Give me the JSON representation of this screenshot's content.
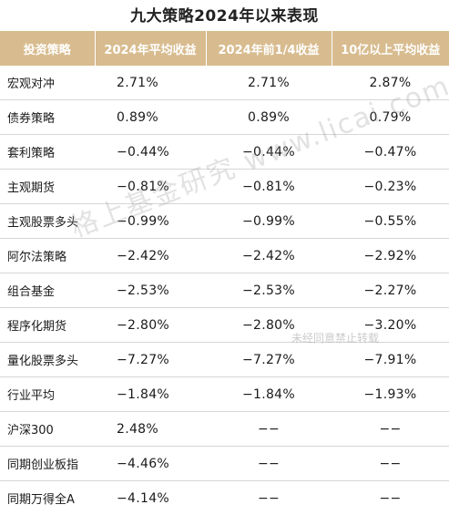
{
  "title": "九大策略2024年以来表现",
  "table": {
    "headers": [
      "投资策略",
      "2024年平均收益",
      "2024年前1/4收益",
      "10亿以上平均收益"
    ],
    "rows": [
      {
        "name": "宏观对冲",
        "avg": "2.71%",
        "q1": "2.71%",
        "big": "2.87%"
      },
      {
        "name": "债券策略",
        "avg": "0.89%",
        "q1": "0.89%",
        "big": "0.79%"
      },
      {
        "name": "套利策略",
        "avg": "−0.44%",
        "q1": "−0.44%",
        "big": "−0.47%"
      },
      {
        "name": "主观期货",
        "avg": "−0.81%",
        "q1": "−0.81%",
        "big": "−0.23%"
      },
      {
        "name": "主观股票多头",
        "avg": "−0.99%",
        "q1": "−0.99%",
        "big": "−0.55%"
      },
      {
        "name": "阿尔法策略",
        "avg": "−2.42%",
        "q1": "−2.42%",
        "big": "−2.92%"
      },
      {
        "name": "组合基金",
        "avg": "−2.53%",
        "q1": "−2.53%",
        "big": "−2.27%"
      },
      {
        "name": "程序化期货",
        "avg": "−2.80%",
        "q1": "−2.80%",
        "big": "−3.20%"
      },
      {
        "name": "量化股票多头",
        "avg": "−7.27%",
        "q1": "−7.27%",
        "big": "−7.91%"
      },
      {
        "name": "行业平均",
        "avg": "−1.84%",
        "q1": "−1.84%",
        "big": "−1.93%"
      },
      {
        "name": "沪深300",
        "avg": "2.48%",
        "q1": "−−",
        "big": "−−"
      },
      {
        "name": "同期创业板指",
        "avg": "−4.46%",
        "q1": "−−",
        "big": "−−"
      },
      {
        "name": "同期万得全A",
        "avg": "−4.14%",
        "q1": "−−",
        "big": "−−"
      }
    ]
  },
  "watermark": {
    "main": "格上基金研究 www.licai.com",
    "note": "未经同意禁止转载"
  },
  "colors": {
    "header_bg": "#d8bc8f",
    "header_text": "#ffffff",
    "row_divider": "#d6d6d6"
  }
}
